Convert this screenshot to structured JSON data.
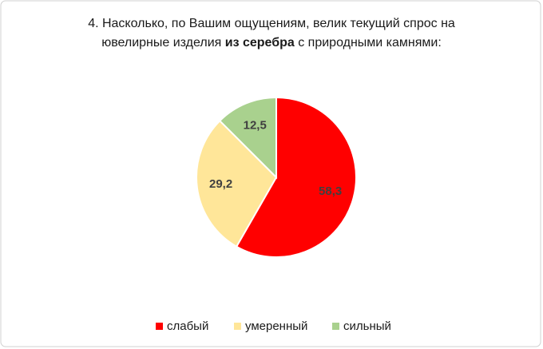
{
  "chart_data": {
    "type": "pie",
    "title": [
      "4. Насколько, по Вашим ощущениям, велик текущий спрос на",
      "ювелирные изделия ",
      "из серебра",
      " с природными камнями:"
    ],
    "categories": [
      "слабый",
      "умеренный",
      "сильный"
    ],
    "values": [
      58.3,
      29.2,
      12.5
    ],
    "value_labels": [
      "58,3",
      "29,2",
      "12,5"
    ],
    "colors": [
      "#ff0000",
      "#ffe699",
      "#a9d18e"
    ],
    "legend": "bottom"
  }
}
